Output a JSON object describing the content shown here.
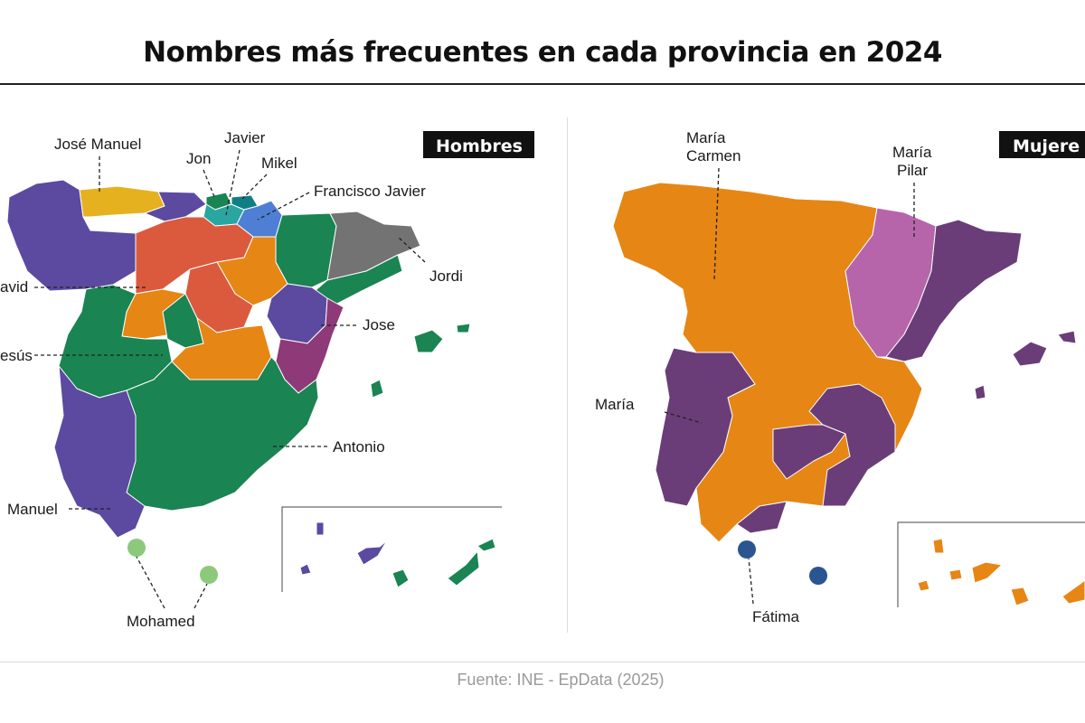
{
  "title": "Nombres más frecuentes en cada provincia en 2024",
  "source": "Fuente: INE - EpData (2025)",
  "colors": {
    "purple": "#5b4aa0",
    "yellow": "#e6b11e",
    "green": "#1a8452",
    "light_green": "#8cc97a",
    "teal": "#2aa6a1",
    "blue": "#4f7fd4",
    "gray": "#737373",
    "red": "#db5a3e",
    "orange": "#e68615",
    "magenta": "#8e3a78",
    "women_orange": "#e68615",
    "women_purple": "#6a3d79",
    "women_pink": "#b765aa",
    "navy": "#2a5591"
  },
  "men": {
    "badge": "Hombres",
    "labels": {
      "jose_manuel": "José Manuel",
      "javier": "Javier",
      "jon": "Jon",
      "mikel": "Mikel",
      "francisco_javier": "Francisco Javier",
      "jordi": "Jordi",
      "david": "avid",
      "jose": "Jose",
      "jesus": "esús",
      "antonio": "Antonio",
      "manuel": "Manuel",
      "mohamed": "Mohamed"
    }
  },
  "women": {
    "badge": "Mujere",
    "labels": {
      "maria_carmen_1": "María",
      "maria_carmen_2": "Carmen",
      "maria_pilar_1": "María",
      "maria_pilar_2": "Pilar",
      "maria": "María",
      "fatima": "Fátima"
    }
  }
}
